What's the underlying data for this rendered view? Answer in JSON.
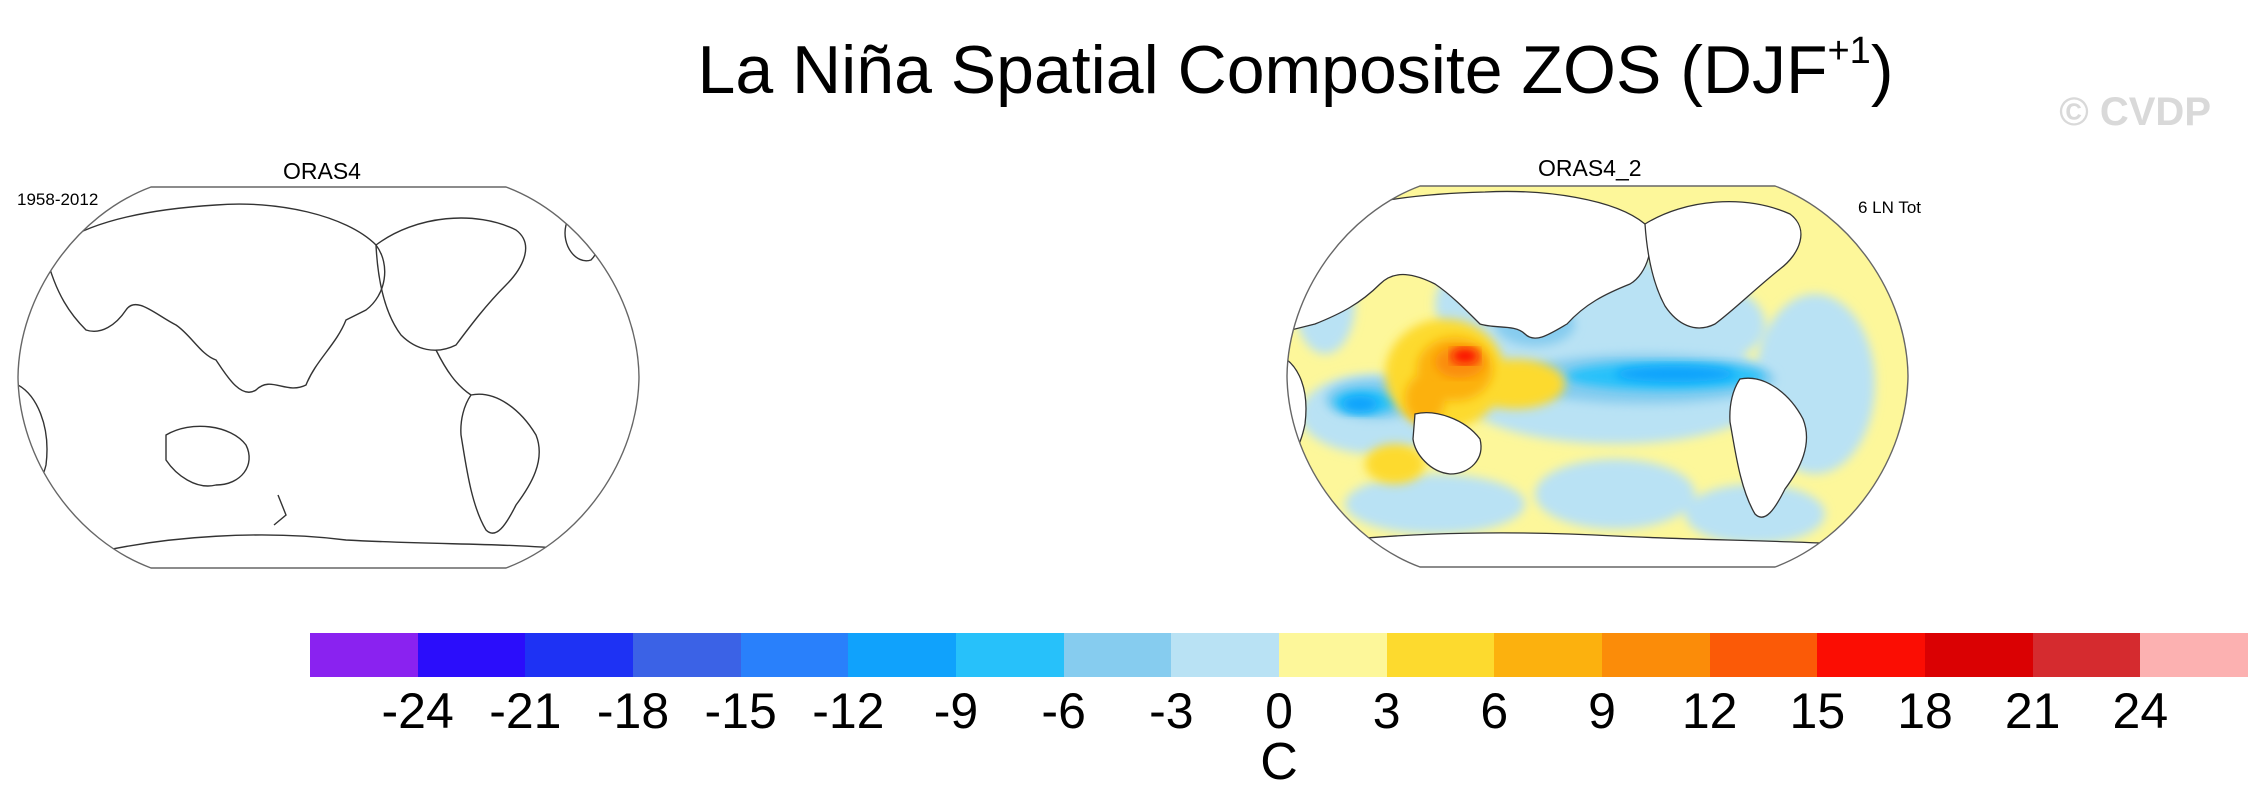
{
  "title": {
    "main": "La Niña Spatial Composite ZOS (DJF",
    "superscript": "+1",
    "close": ")"
  },
  "watermark": "© CVDP",
  "panels": [
    {
      "name": "ORAS4",
      "period": "1958-2012",
      "has_data": false
    },
    {
      "name": "ORAS4_2",
      "annotation": "6 LN Tot",
      "has_data": true
    }
  ],
  "colorbar": {
    "units": "C",
    "colors": [
      "#8a22f0",
      "#2b0dfb",
      "#1e32f4",
      "#3b62e6",
      "#2980fb",
      "#10a2fc",
      "#27c1fa",
      "#86ccef",
      "#b9e2f4",
      "#fdf79a",
      "#fdda2e",
      "#fcb10e",
      "#fb8c09",
      "#fb5a07",
      "#fb0d03",
      "#da0103",
      "#d52b2f",
      "#fcb1b1"
    ],
    "ticks": [
      "-24",
      "-21",
      "-18",
      "-15",
      "-12",
      "-9",
      "-6",
      "-3",
      "0",
      "3",
      "6",
      "9",
      "12",
      "15",
      "18",
      "21",
      "24"
    ]
  }
}
